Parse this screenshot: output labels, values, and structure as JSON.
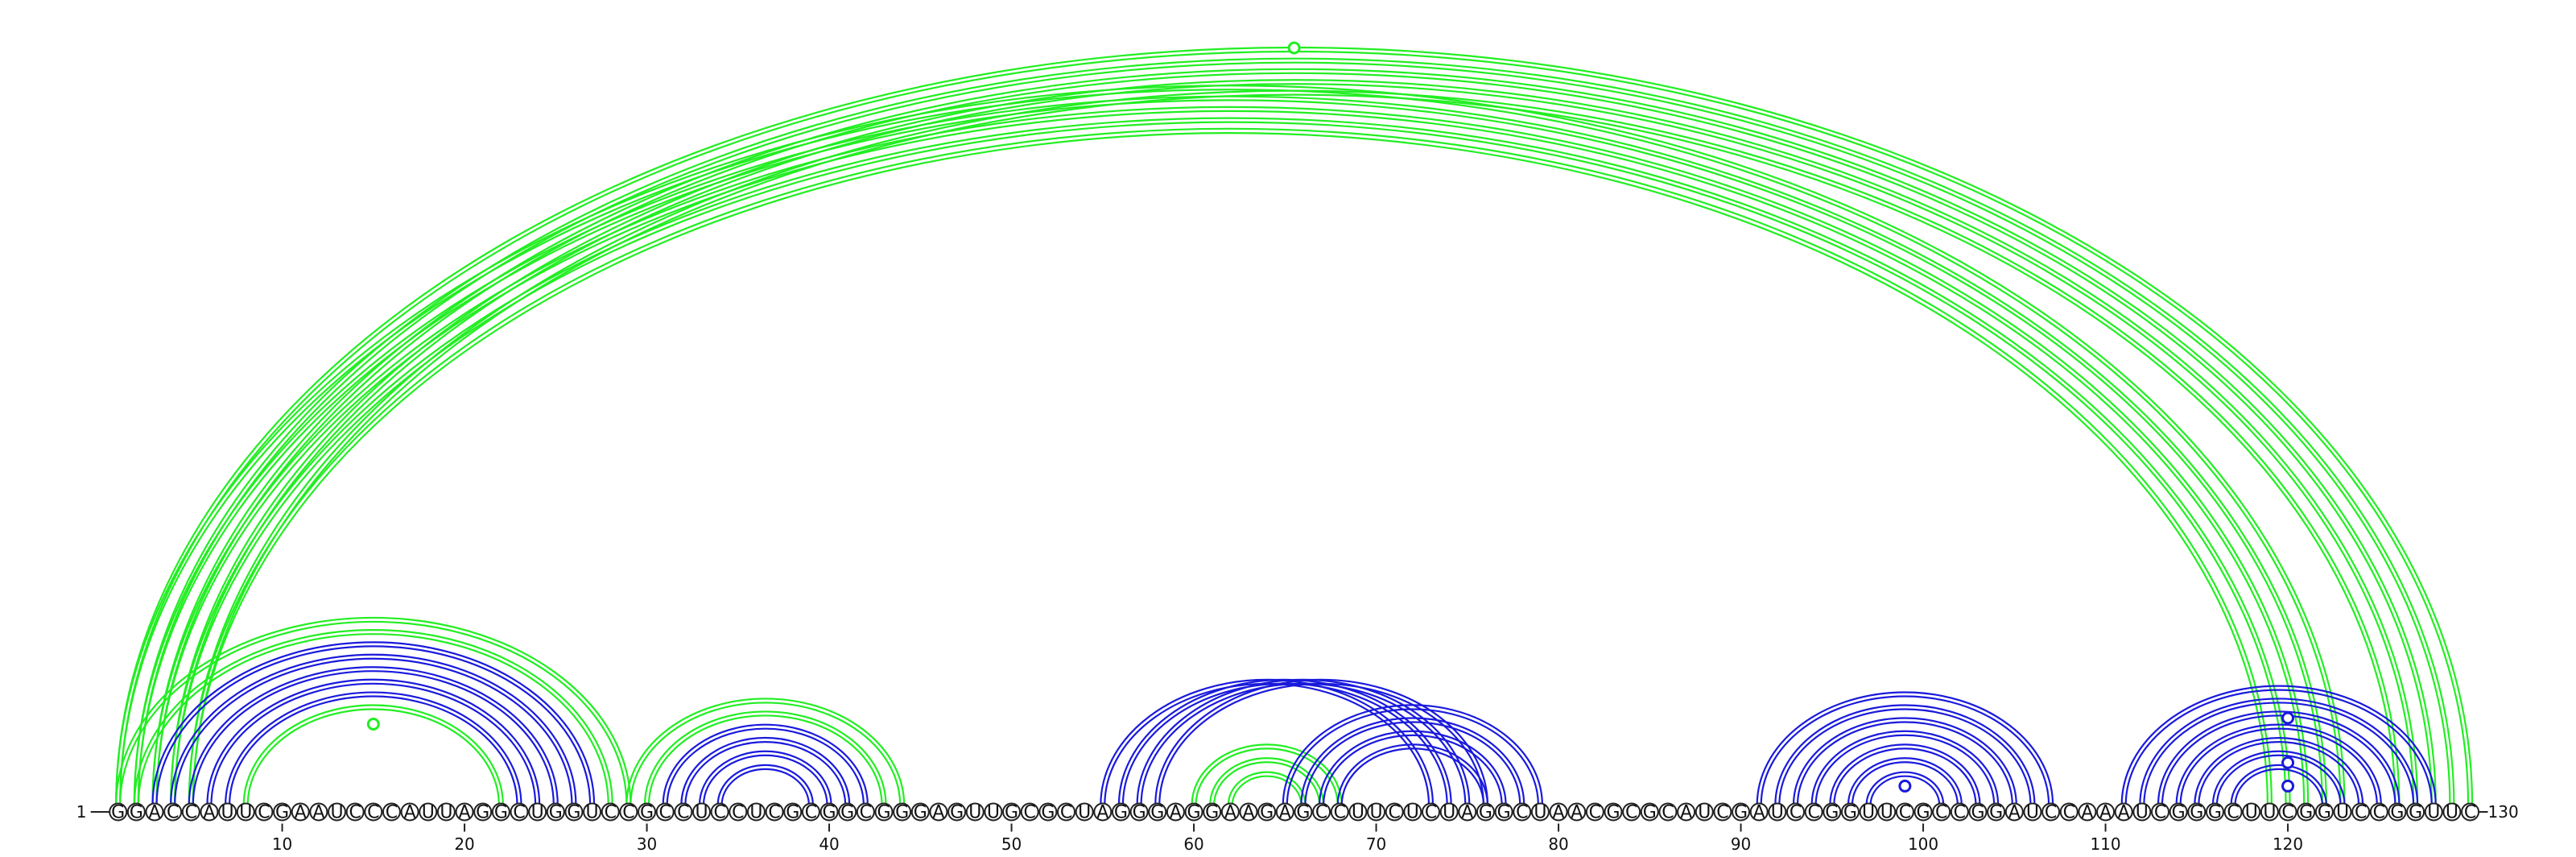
{
  "sequence": "GGACCAUUCGAAUCCCAUUAGGCUGGUCCGCCUCCUCGCGGCGGGAGUUGCGCUAGGGAGGAAGAGCCUUCUCUAGGCUAACGCGCAUCGAUCCGGUUCGCCGGAUCCAAAUCGGGCUUCGGUCCGGUUC",
  "start_label": "1",
  "end_label": "130",
  "ticks": [
    "10",
    "20",
    "30",
    "40",
    "50",
    "60",
    "70",
    "80",
    "90",
    "100",
    "110",
    "120"
  ],
  "colors": {
    "green": "#22ee22",
    "blue": "#1a1adc",
    "backbone": "#222222"
  },
  "arcs": [
    {
      "i": 1,
      "j": 123,
      "color": "green"
    },
    {
      "i": 2,
      "j": 122,
      "color": "green"
    },
    {
      "i": 3,
      "j": 121,
      "color": "green"
    },
    {
      "i": 4,
      "j": 120,
      "color": "green"
    },
    {
      "i": 5,
      "j": 119,
      "color": "green"
    },
    {
      "i": 1,
      "j": 130,
      "color": "green"
    },
    {
      "i": 2,
      "j": 129,
      "color": "green"
    },
    {
      "i": 3,
      "j": 128,
      "color": "green"
    },
    {
      "i": 4,
      "j": 127,
      "color": "green"
    },
    {
      "i": 5,
      "j": 126,
      "color": "green"
    },
    {
      "i": 1,
      "j": 29,
      "color": "green"
    },
    {
      "i": 2,
      "j": 28,
      "color": "green"
    },
    {
      "i": 3,
      "j": 27,
      "color": "blue"
    },
    {
      "i": 4,
      "j": 26,
      "color": "blue"
    },
    {
      "i": 5,
      "j": 25,
      "color": "blue"
    },
    {
      "i": 6,
      "j": 24,
      "color": "blue"
    },
    {
      "i": 7,
      "j": 23,
      "color": "blue"
    },
    {
      "i": 8,
      "j": 22,
      "color": "green"
    },
    {
      "i": 29,
      "j": 44,
      "color": "green"
    },
    {
      "i": 30,
      "j": 43,
      "color": "green"
    },
    {
      "i": 31,
      "j": 42,
      "color": "blue"
    },
    {
      "i": 32,
      "j": 41,
      "color": "blue"
    },
    {
      "i": 33,
      "j": 40,
      "color": "blue"
    },
    {
      "i": 34,
      "j": 39,
      "color": "blue"
    },
    {
      "i": 55,
      "j": 73,
      "color": "blue"
    },
    {
      "i": 56,
      "j": 74,
      "color": "blue"
    },
    {
      "i": 57,
      "j": 75,
      "color": "blue"
    },
    {
      "i": 58,
      "j": 76,
      "color": "blue"
    },
    {
      "i": 60,
      "j": 68,
      "color": "green"
    },
    {
      "i": 61,
      "j": 67,
      "color": "green"
    },
    {
      "i": 62,
      "j": 66,
      "color": "green"
    },
    {
      "i": 65,
      "j": 79,
      "color": "blue"
    },
    {
      "i": 66,
      "j": 78,
      "color": "blue"
    },
    {
      "i": 67,
      "j": 77,
      "color": "blue"
    },
    {
      "i": 68,
      "j": 76,
      "color": "blue"
    },
    {
      "i": 91,
      "j": 107,
      "color": "blue"
    },
    {
      "i": 92,
      "j": 106,
      "color": "blue"
    },
    {
      "i": 93,
      "j": 105,
      "color": "blue"
    },
    {
      "i": 94,
      "j": 104,
      "color": "blue"
    },
    {
      "i": 95,
      "j": 103,
      "color": "blue"
    },
    {
      "i": 96,
      "j": 102,
      "color": "blue"
    },
    {
      "i": 97,
      "j": 101,
      "color": "blue"
    },
    {
      "i": 111,
      "j": 128,
      "color": "blue"
    },
    {
      "i": 112,
      "j": 127,
      "color": "blue"
    },
    {
      "i": 113,
      "j": 126,
      "color": "blue"
    },
    {
      "i": 114,
      "j": 125,
      "color": "blue"
    },
    {
      "i": 115,
      "j": 124,
      "color": "blue"
    },
    {
      "i": 116,
      "j": 123,
      "color": "blue"
    },
    {
      "i": 117,
      "j": 122,
      "color": "blue"
    }
  ],
  "markers": [
    {
      "pos": 65.5,
      "height": 1.0,
      "color": "green"
    },
    {
      "pos": 15,
      "height": 0.105,
      "color": "green"
    },
    {
      "pos": 99,
      "height": 0.023,
      "color": "blue"
    },
    {
      "pos": 120,
      "height": 0.113,
      "color": "blue"
    },
    {
      "pos": 120,
      "height": 0.054,
      "color": "blue"
    },
    {
      "pos": 120,
      "height": 0.023,
      "color": "blue"
    }
  ]
}
